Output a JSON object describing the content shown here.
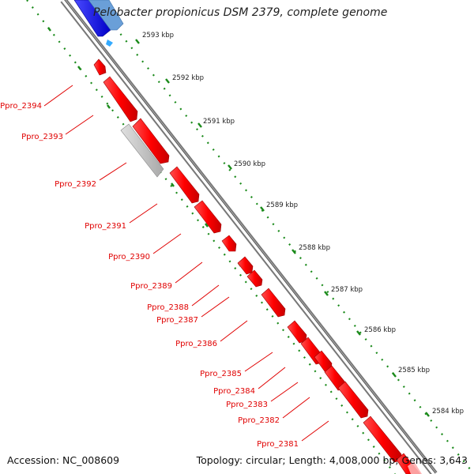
{
  "title": "Pelobacter propionicus DSM 2379, complete genome",
  "accession": "Accession: NC_008609",
  "summary": "Topology: circular; Length: 4,008,000 bp; Genes: 3,643",
  "colors": {
    "forward_strand": "#1a1aff",
    "reverse_strand": "#ff0000",
    "pseudo_gene": "#bfbfbf",
    "backbone": "#777777",
    "tick_dots": "#1a8a1a",
    "label": "#e00000"
  },
  "scale_ticks": [
    {
      "label": "2593 kbp"
    },
    {
      "label": "2592 kbp"
    },
    {
      "label": "2591 kbp"
    },
    {
      "label": "2590 kbp"
    },
    {
      "label": "2589 kbp"
    },
    {
      "label": "2588 kbp"
    },
    {
      "label": "2587 kbp"
    },
    {
      "label": "2586 kbp"
    },
    {
      "label": "2585 kbp"
    },
    {
      "label": "2584 kbp"
    }
  ],
  "gene_labels": [
    {
      "name": "Ppro_2394"
    },
    {
      "name": "Ppro_2393"
    },
    {
      "name": "Ppro_2392"
    },
    {
      "name": "Ppro_2391"
    },
    {
      "name": "Ppro_2390"
    },
    {
      "name": "Ppro_2389"
    },
    {
      "name": "Ppro_2388"
    },
    {
      "name": "Ppro_2387"
    },
    {
      "name": "Ppro_2386"
    },
    {
      "name": "Ppro_2385"
    },
    {
      "name": "Ppro_2384"
    },
    {
      "name": "Ppro_2383"
    },
    {
      "name": "Ppro_2382"
    },
    {
      "name": "Ppro_2381"
    }
  ]
}
